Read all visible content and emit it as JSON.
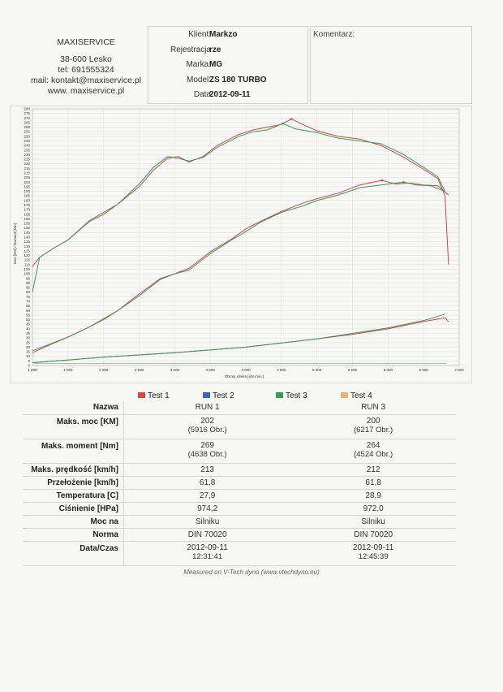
{
  "company": {
    "name": "MAXISERVICE",
    "address": "38-600 Lesko",
    "phone": "tel: 691555324",
    "email": "mail: kontakt@maxiservice.pl",
    "web": "www. maxiservice.pl"
  },
  "vehicle": {
    "rows": [
      {
        "label": "Klient:",
        "value": "Markzo"
      },
      {
        "label": "Rejestracja",
        "value": "rze"
      },
      {
        "label": "Marka:",
        "value": "MG"
      },
      {
        "label": "Model:",
        "value": "ZS 180  TURBO"
      },
      {
        "label": "Data",
        "value": "2012-09-11"
      }
    ]
  },
  "comment": {
    "label": "Komentarz:"
  },
  "chart_data": {
    "type": "line",
    "xlabel": "Obroty silnika [obr./min.]",
    "ylabel": "Moc [KM] / Moment [Nm]",
    "xlim": [
      1000,
      7000
    ],
    "ylim": [
      0,
      280
    ],
    "x_ticks": [
      "1 000",
      "1 500",
      "2 000",
      "2 500",
      "3 000",
      "3 500",
      "4 000",
      "4 500",
      "5 000",
      "5 500",
      "6 000",
      "6 500",
      "7 000"
    ],
    "y_ticks": [
      "0",
      "5",
      "10",
      "15",
      "20",
      "25",
      "30",
      "35",
      "40",
      "45",
      "50",
      "55",
      "60",
      "65",
      "70",
      "75",
      "80",
      "85",
      "90",
      "95",
      "100",
      "105",
      "110",
      "115",
      "120",
      "125",
      "130",
      "135",
      "140",
      "145",
      "150",
      "155",
      "160",
      "165",
      "170",
      "175",
      "180",
      "185",
      "190",
      "195",
      "200",
      "205",
      "210",
      "215",
      "220",
      "225",
      "230",
      "235",
      "240",
      "245",
      "250",
      "255",
      "260",
      "265",
      "270",
      "275",
      "280"
    ],
    "grid": true,
    "colors": {
      "test1": "#d64545",
      "test3": "#3a9a5a",
      "power_line": "#3f8f72"
    },
    "series": [
      {
        "name": "Test 1",
        "kind": "torque",
        "color": "#d64545",
        "x": [
          1000,
          1100,
          1300,
          1500,
          1800,
          2000,
          2200,
          2500,
          2700,
          2900,
          3050,
          3200,
          3400,
          3600,
          3900,
          4100,
          4300,
          4500,
          4640,
          4800,
          5000,
          5300,
          5600,
          5900,
          6200,
          6500,
          6700,
          6800,
          6850
        ],
        "y": [
          108,
          118,
          128,
          137,
          157,
          165,
          176,
          195,
          213,
          226,
          228,
          222,
          228,
          240,
          252,
          257,
          260,
          263,
          269,
          263,
          256,
          250,
          247,
          240,
          228,
          214,
          204,
          185,
          110
        ]
      },
      {
        "name": "Test 3",
        "kind": "torque",
        "color": "#3a9a5a",
        "x": [
          1000,
          1100,
          1300,
          1500,
          1800,
          2000,
          2200,
          2500,
          2700,
          2900,
          3050,
          3200,
          3400,
          3600,
          3900,
          4100,
          4300,
          4520,
          4700,
          5000,
          5300,
          5600,
          5900,
          6200,
          6500,
          6700,
          6800
        ],
        "y": [
          80,
          118,
          128,
          137,
          158,
          167,
          176,
          198,
          216,
          228,
          226,
          223,
          227,
          238,
          250,
          255,
          257,
          264,
          258,
          254,
          248,
          245,
          242,
          231,
          216,
          206,
          190
        ]
      },
      {
        "name": "Test 1",
        "kind": "power",
        "color": "#d64545",
        "x": [
          1000,
          1200,
          1500,
          1800,
          2000,
          2200,
          2500,
          2800,
          3000,
          3200,
          3500,
          3800,
          4000,
          4200,
          4500,
          4800,
          5000,
          5300,
          5600,
          5916,
          6100,
          6300,
          6500,
          6700,
          6850
        ],
        "y": [
          14,
          21,
          31,
          42,
          51,
          60,
          78,
          95,
          100,
          106,
          124,
          138,
          149,
          157,
          168,
          177,
          182,
          188,
          197,
          202,
          198,
          199,
          197,
          196,
          186
        ]
      },
      {
        "name": "Test 3",
        "kind": "power",
        "color": "#3a9a5a",
        "x": [
          1000,
          1200,
          1500,
          1800,
          2000,
          2200,
          2500,
          2800,
          3000,
          3200,
          3500,
          3800,
          4000,
          4200,
          4500,
          4800,
          5000,
          5300,
          5600,
          5900,
          6217,
          6400,
          6600,
          6800
        ],
        "y": [
          16,
          22,
          31,
          42,
          50,
          60,
          76,
          94,
          100,
          104,
          122,
          137,
          146,
          156,
          167,
          174,
          180,
          186,
          194,
          197,
          200,
          197,
          196,
          190
        ]
      },
      {
        "name": "Test 1",
        "kind": "loss",
        "color": "#d64545",
        "x": [
          1000,
          2000,
          3000,
          4000,
          5000,
          5500,
          6000,
          6500,
          6800,
          6850
        ],
        "y": [
          3,
          9,
          14,
          20,
          29,
          34,
          40,
          48,
          52,
          48
        ]
      },
      {
        "name": "Test 3",
        "kind": "loss",
        "color": "#3a9a5a",
        "x": [
          1000,
          2000,
          3000,
          4000,
          5000,
          5500,
          6000,
          6500,
          6800
        ],
        "y": [
          3,
          9,
          14,
          20,
          29,
          35,
          41,
          49,
          56
        ]
      }
    ]
  },
  "legend": {
    "items": [
      {
        "name": "Test 1",
        "color": "#d64545"
      },
      {
        "name": "Test 2",
        "color": "#3b63c4"
      },
      {
        "name": "Test 3",
        "color": "#3a9a5a"
      },
      {
        "name": "Test 4",
        "color": "#f0b070"
      }
    ]
  },
  "results": {
    "rows": [
      {
        "label": "Nazwa",
        "run1": "RUN 1",
        "run3": "RUN 3"
      },
      {
        "label": "Maks. moc [KM]",
        "run1": "202",
        "run1_sub": "(5916 Obr.)",
        "run3": "200",
        "run3_sub": "(6217 Obr.)"
      },
      {
        "label": "Maks. moment [Nm]",
        "run1": "269",
        "run1_sub": "(4638 Obr.)",
        "run3": "264",
        "run3_sub": "(4524 Obr.)"
      },
      {
        "label": "Maks. prędkość [km/h]",
        "run1": "213",
        "run3": "212"
      },
      {
        "label": "Przełożenie [km/h]",
        "run1": "61,8",
        "run3": "61,8"
      },
      {
        "label": "Temperatura [C]",
        "run1": "27,9",
        "run3": "28,9"
      },
      {
        "label": "Ciśnienie [HPa]",
        "run1": "974,2",
        "run3": "972,0"
      },
      {
        "label": "Moc na",
        "run1": "Silniku",
        "run3": "Silniku"
      },
      {
        "label": "Norma",
        "run1": "DIN 70020",
        "run3": "DIN 70020"
      },
      {
        "label": "Data/Czas",
        "run1": "2012-09-11",
        "run1_sub": "12:31:41",
        "run3": "2012-09-11",
        "run3_sub": "12:45:39"
      }
    ]
  },
  "footer": "Measured on V-Tech dyno (www.vtechdyno.eu)"
}
